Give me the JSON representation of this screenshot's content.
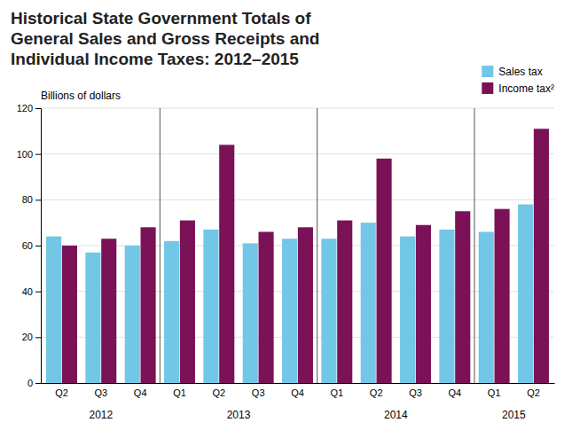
{
  "chart_data": {
    "type": "bar",
    "title": "Historical State Government Totals of\nGeneral Sales and Gross Receipts and\nIndividual Income Taxes: 2012–2015",
    "ylabel": "Billions of dollars",
    "categories": [
      "Q2",
      "Q3",
      "Q4",
      "Q1",
      "Q2",
      "Q3",
      "Q4",
      "Q1",
      "Q2",
      "Q3",
      "Q4",
      "Q1",
      "Q2"
    ],
    "groups": [
      "2012",
      "2012",
      "2012",
      "2013",
      "2013",
      "2013",
      "2013",
      "2014",
      "2014",
      "2014",
      "2014",
      "2015",
      "2015"
    ],
    "series": [
      {
        "name": "Sales tax",
        "color": "#72C7E7",
        "values": [
          64,
          57,
          60,
          62,
          67,
          61,
          63,
          63,
          70,
          64,
          67,
          66,
          78
        ]
      },
      {
        "name": "Income tax²",
        "color": "#7B1257",
        "values": [
          60,
          63,
          68,
          71,
          104,
          66,
          68,
          71,
          98,
          69,
          75,
          76,
          111
        ]
      }
    ],
    "ylim": [
      0,
      120
    ],
    "yticks": [
      0,
      20,
      40,
      60,
      80,
      100,
      120
    ],
    "grid": true,
    "legend": "upper right"
  }
}
